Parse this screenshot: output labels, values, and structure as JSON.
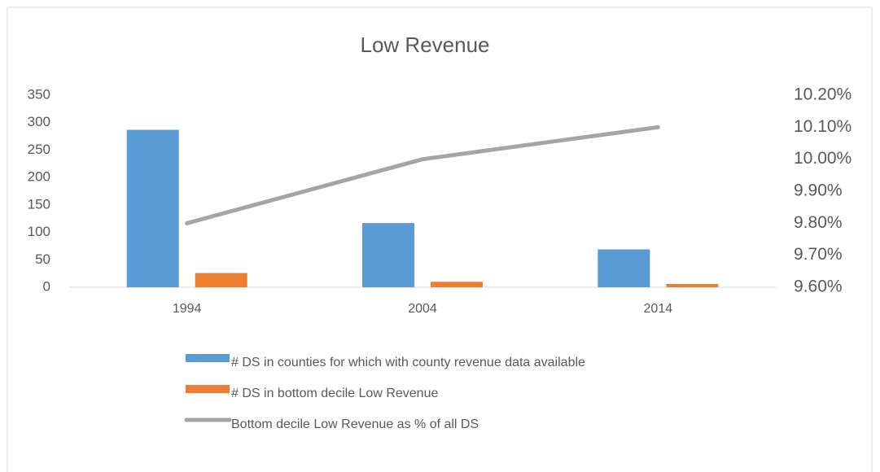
{
  "chart_data": {
    "type": "bar",
    "title": "Low Revenue",
    "categories": [
      "1994",
      "2004",
      "2014"
    ],
    "series": [
      {
        "name": "# DS in counties for which with county revenue data available",
        "color": "#5b9bd5",
        "values": [
          287,
          117,
          69
        ]
      },
      {
        "name": "# DS in bottom decile Low Revenue",
        "color": "#ed7d31",
        "values": [
          26,
          10,
          6
        ]
      },
      {
        "name": "Bottom decile Low Revenue as % of all DS",
        "color": "#a5a5a5",
        "type": "line",
        "axis": "y2",
        "values": [
          9.8,
          10.0,
          10.1
        ]
      }
    ],
    "ylim": [
      0,
      350
    ],
    "yticks": [
      0,
      50,
      100,
      150,
      200,
      250,
      300,
      350
    ],
    "y2lim": [
      9.6,
      10.2
    ],
    "y2ticks": [
      {
        "value": 9.6,
        "label": "9.60%"
      },
      {
        "value": 9.7,
        "label": "9.70%"
      },
      {
        "value": 9.8,
        "label": "9.80%"
      },
      {
        "value": 9.9,
        "label": "9.90%"
      },
      {
        "value": 10.0,
        "label": "10.00%"
      },
      {
        "value": 10.1,
        "label": "10.10%"
      },
      {
        "value": 10.2,
        "label": "10.20%"
      }
    ],
    "legend": "bottom"
  }
}
